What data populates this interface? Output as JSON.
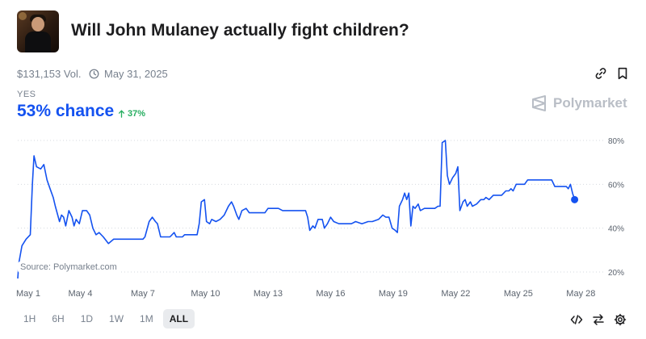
{
  "market": {
    "title": "Will John Mulaney actually fight children?",
    "volume": "$131,153 Vol.",
    "end_date": "May 31, 2025",
    "outcome_label": "YES",
    "chance_text": "53% chance",
    "change_text": "37%",
    "brand": "Polymarket",
    "source": "Source: Polymarket.com"
  },
  "icons": {
    "link": "link-icon",
    "bookmark": "bookmark-icon",
    "clock": "clock-icon",
    "up_arrow": "arrow-up-icon",
    "embed": "code-icon",
    "swap": "swap-icon",
    "settings": "gear-icon"
  },
  "colors": {
    "line": "#1452f0",
    "up": "#27ae60",
    "text": "#1d1d1f",
    "muted": "#77808d"
  },
  "time_ranges": [
    "1H",
    "6H",
    "1D",
    "1W",
    "1M",
    "ALL"
  ],
  "active_range": "ALL",
  "chart_data": {
    "type": "line",
    "title": "",
    "xlabel": "",
    "ylabel": "",
    "series": [
      {
        "values_note": "",
        "values": []
      }
    ],
    "x_ticks": [
      "May 1",
      "May 4",
      "May 7",
      "May 10",
      "May 13",
      "May 16",
      "May 19",
      "May 22",
      "May 25",
      "May 28"
    ],
    "y_ticks": [
      "20%",
      "40%",
      "60%",
      "80%"
    ],
    "ylim": [
      20,
      80
    ],
    "xlim": [
      1,
      28.8
    ],
    "grid": "horizontal dotted",
    "points": [
      [
        1.0,
        17
      ],
      [
        1.05,
        24
      ],
      [
        1.2,
        32
      ],
      [
        1.4,
        35
      ],
      [
        1.6,
        37
      ],
      [
        1.7,
        60
      ],
      [
        1.78,
        73
      ],
      [
        1.9,
        68
      ],
      [
        2.1,
        67
      ],
      [
        2.25,
        69
      ],
      [
        2.4,
        62
      ],
      [
        2.55,
        58
      ],
      [
        2.7,
        54
      ],
      [
        2.8,
        50
      ],
      [
        3.0,
        43
      ],
      [
        3.1,
        46
      ],
      [
        3.2,
        45
      ],
      [
        3.3,
        41
      ],
      [
        3.45,
        48
      ],
      [
        3.6,
        45
      ],
      [
        3.7,
        41
      ],
      [
        3.8,
        44
      ],
      [
        3.95,
        42
      ],
      [
        4.1,
        48
      ],
      [
        4.3,
        48
      ],
      [
        4.45,
        46
      ],
      [
        4.6,
        40
      ],
      [
        4.75,
        37
      ],
      [
        4.9,
        38
      ],
      [
        5.1,
        36
      ],
      [
        5.35,
        33
      ],
      [
        5.6,
        35
      ],
      [
        6.0,
        35
      ],
      [
        6.5,
        35
      ],
      [
        7.0,
        35
      ],
      [
        7.1,
        36
      ],
      [
        7.3,
        43
      ],
      [
        7.45,
        45
      ],
      [
        7.6,
        43
      ],
      [
        7.7,
        42
      ],
      [
        7.85,
        36
      ],
      [
        8.0,
        36
      ],
      [
        8.3,
        36
      ],
      [
        8.5,
        38
      ],
      [
        8.6,
        36
      ],
      [
        8.9,
        36
      ],
      [
        9.0,
        37
      ],
      [
        9.2,
        37
      ],
      [
        9.6,
        37
      ],
      [
        9.7,
        42
      ],
      [
        9.8,
        52
      ],
      [
        9.95,
        53
      ],
      [
        10.05,
        43
      ],
      [
        10.2,
        42
      ],
      [
        10.3,
        44
      ],
      [
        10.5,
        43
      ],
      [
        10.7,
        44
      ],
      [
        10.9,
        46
      ],
      [
        11.1,
        50
      ],
      [
        11.25,
        52
      ],
      [
        11.35,
        50
      ],
      [
        11.5,
        46
      ],
      [
        11.6,
        44
      ],
      [
        11.75,
        48
      ],
      [
        11.95,
        49
      ],
      [
        12.1,
        47
      ],
      [
        12.5,
        47
      ],
      [
        12.85,
        47
      ],
      [
        13.0,
        49
      ],
      [
        13.5,
        49
      ],
      [
        13.7,
        48
      ],
      [
        14.0,
        48
      ],
      [
        14.5,
        48
      ],
      [
        14.8,
        48
      ],
      [
        14.9,
        45
      ],
      [
        15.0,
        39
      ],
      [
        15.15,
        41
      ],
      [
        15.25,
        40
      ],
      [
        15.4,
        44
      ],
      [
        15.6,
        44
      ],
      [
        15.7,
        40
      ],
      [
        15.85,
        42
      ],
      [
        16.0,
        45
      ],
      [
        16.15,
        43
      ],
      [
        16.4,
        42
      ],
      [
        16.6,
        42
      ],
      [
        17.0,
        42
      ],
      [
        17.2,
        43
      ],
      [
        17.5,
        42
      ],
      [
        17.8,
        43
      ],
      [
        18.0,
        43
      ],
      [
        18.3,
        44
      ],
      [
        18.5,
        46
      ],
      [
        18.65,
        45
      ],
      [
        18.8,
        45
      ],
      [
        18.95,
        40
      ],
      [
        19.1,
        39
      ],
      [
        19.2,
        38
      ],
      [
        19.3,
        50
      ],
      [
        19.45,
        53
      ],
      [
        19.55,
        56
      ],
      [
        19.65,
        53
      ],
      [
        19.75,
        56
      ],
      [
        19.85,
        41
      ],
      [
        19.95,
        50
      ],
      [
        20.05,
        49
      ],
      [
        20.2,
        51
      ],
      [
        20.3,
        48
      ],
      [
        20.5,
        49
      ],
      [
        20.7,
        49
      ],
      [
        21.0,
        49
      ],
      [
        21.15,
        50
      ],
      [
        21.25,
        50
      ],
      [
        21.35,
        79
      ],
      [
        21.5,
        80
      ],
      [
        21.6,
        64
      ],
      [
        21.7,
        60
      ],
      [
        21.85,
        63
      ],
      [
        22.0,
        65
      ],
      [
        22.1,
        68
      ],
      [
        22.2,
        48
      ],
      [
        22.35,
        52
      ],
      [
        22.45,
        53
      ],
      [
        22.55,
        50
      ],
      [
        22.7,
        52
      ],
      [
        22.8,
        50
      ],
      [
        23.0,
        51
      ],
      [
        23.2,
        53
      ],
      [
        23.35,
        53
      ],
      [
        23.45,
        54
      ],
      [
        23.6,
        53
      ],
      [
        23.8,
        55
      ],
      [
        24.0,
        55
      ],
      [
        24.2,
        55
      ],
      [
        24.4,
        57
      ],
      [
        24.55,
        57
      ],
      [
        24.65,
        58
      ],
      [
        24.75,
        57
      ],
      [
        24.9,
        60
      ],
      [
        25.1,
        60
      ],
      [
        25.3,
        60
      ],
      [
        25.45,
        62
      ],
      [
        25.6,
        62
      ],
      [
        25.8,
        62
      ],
      [
        26.0,
        62
      ],
      [
        26.2,
        62
      ],
      [
        26.4,
        62
      ],
      [
        26.6,
        62
      ],
      [
        26.75,
        59
      ],
      [
        27.0,
        59
      ],
      [
        27.3,
        59
      ],
      [
        27.4,
        58
      ],
      [
        27.5,
        60
      ],
      [
        27.6,
        56
      ],
      [
        27.7,
        53
      ]
    ],
    "end_value": 53,
    "end_x": 27.7
  }
}
